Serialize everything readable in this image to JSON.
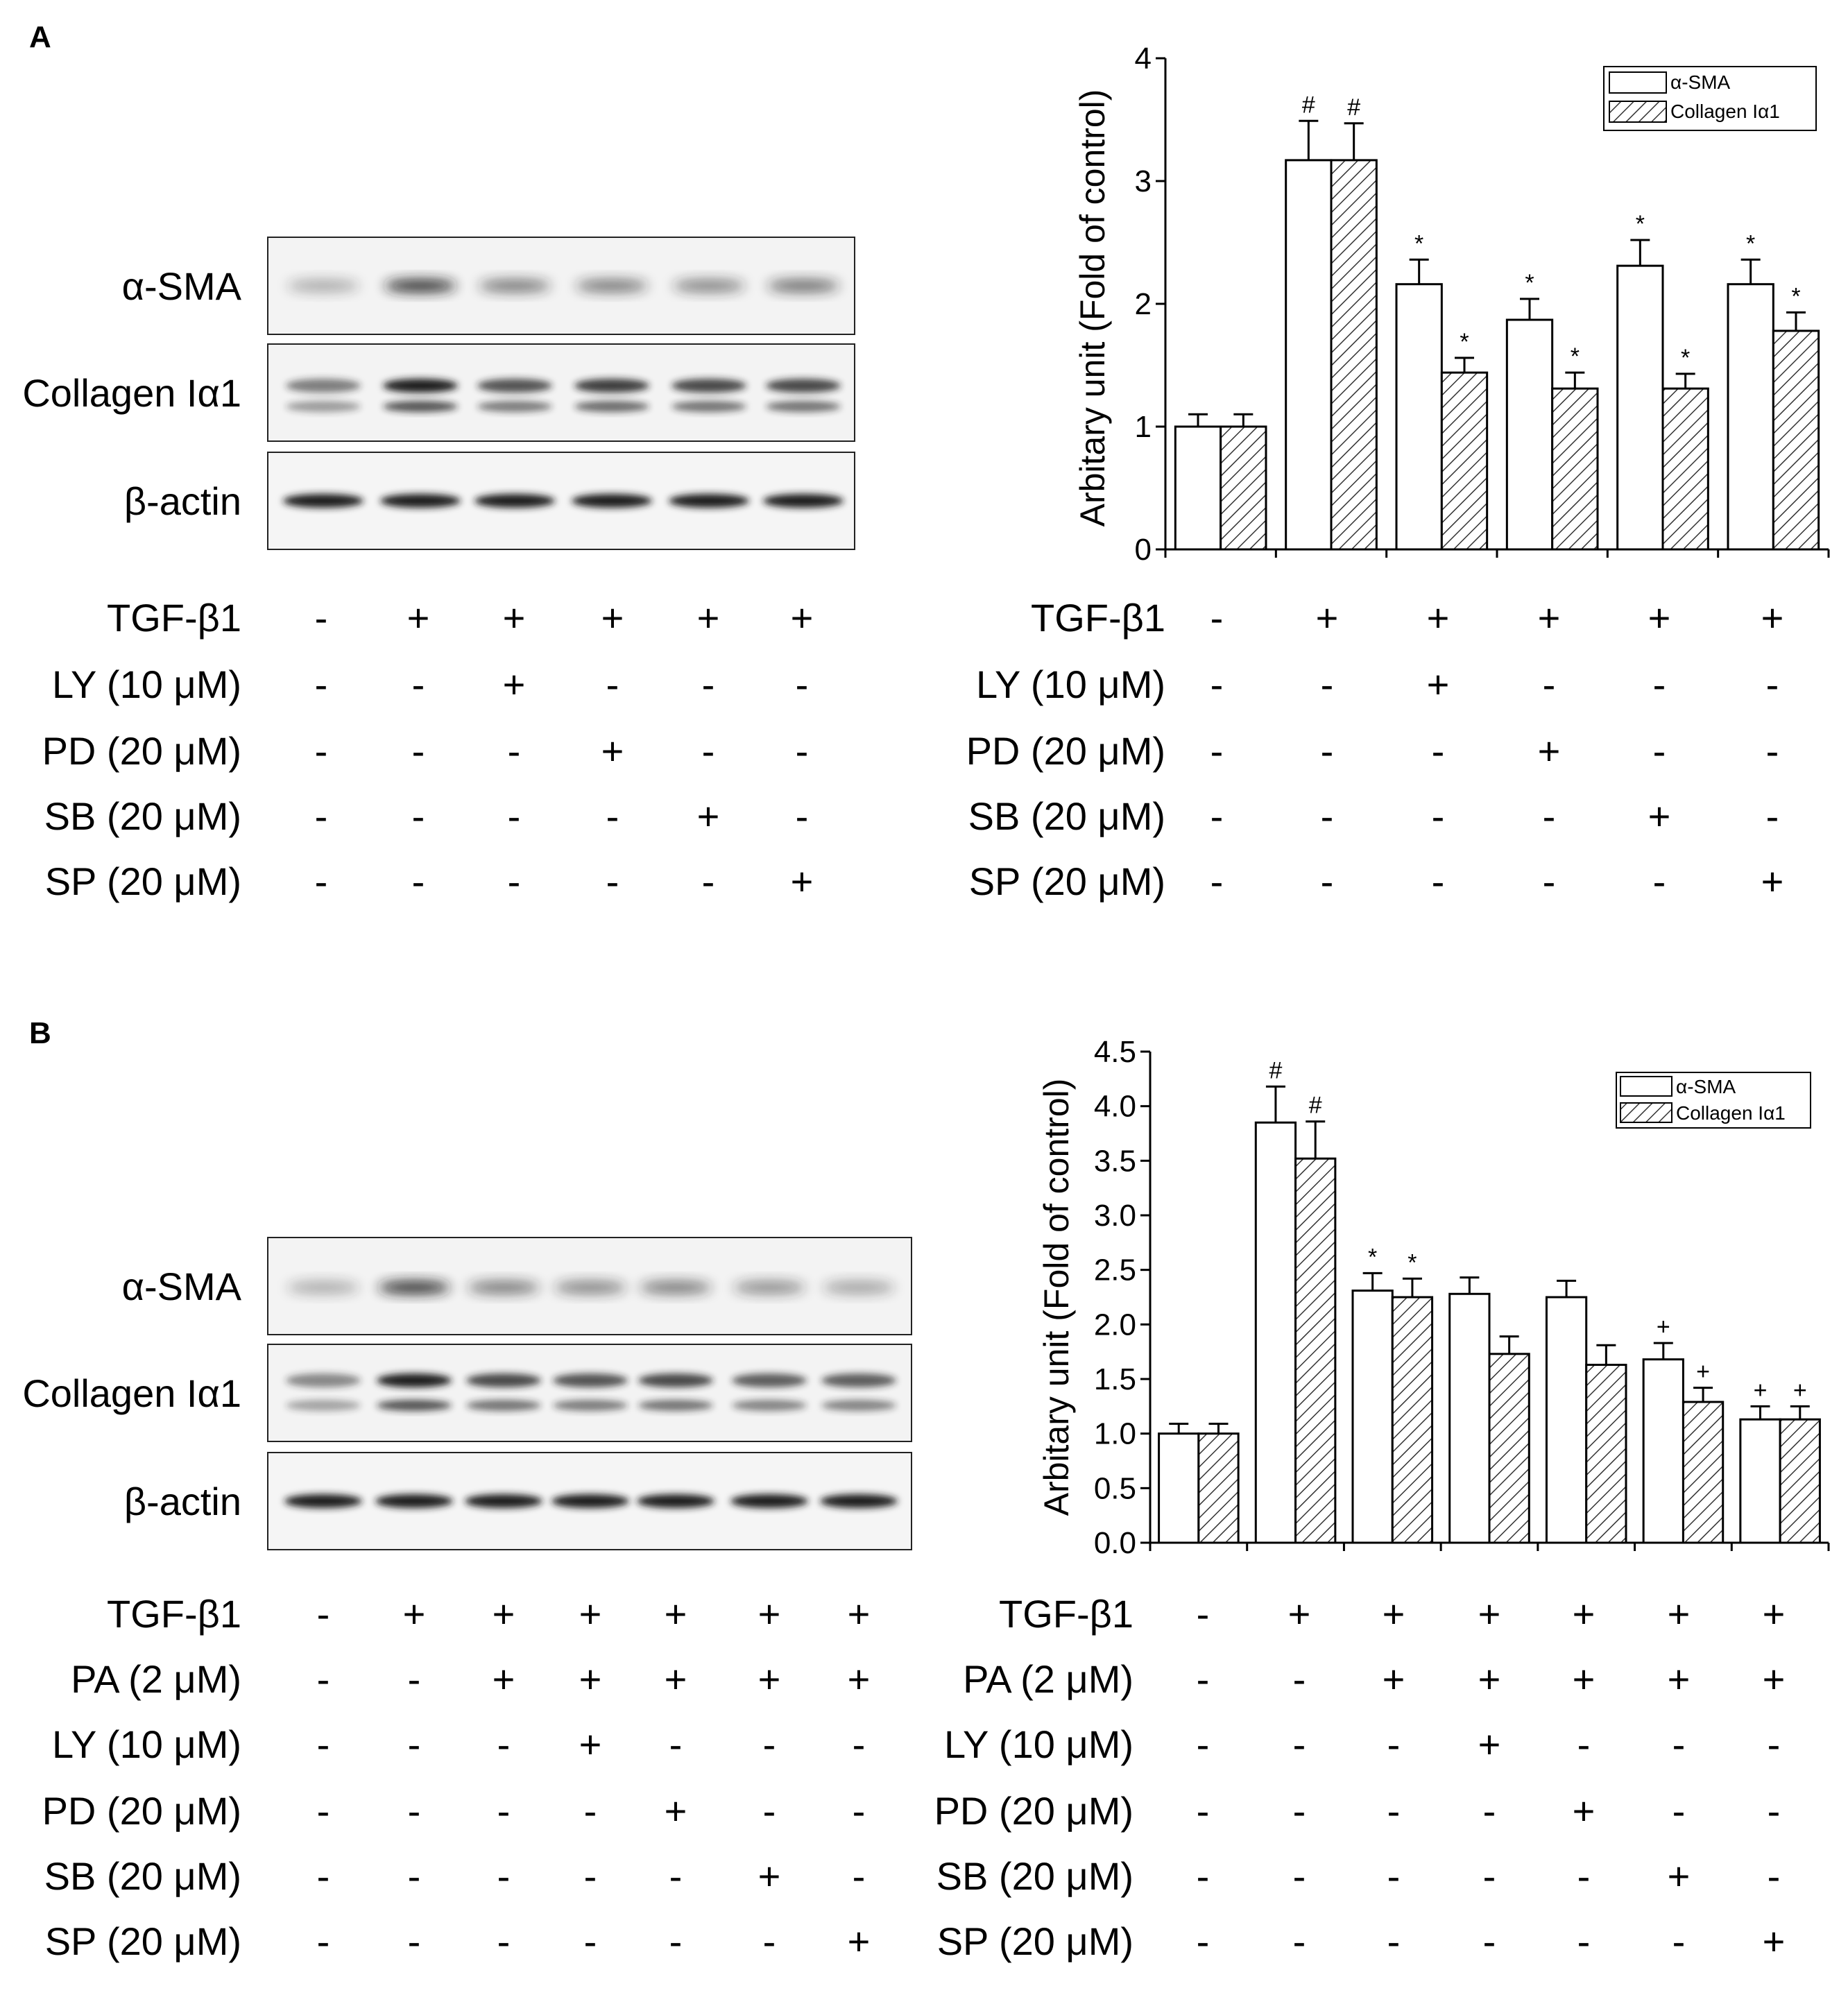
{
  "panel_a": {
    "title": "A",
    "blot_labels": [
      "α-SMA",
      "Collagen Iα1",
      "β-actin"
    ],
    "treatments": [
      {
        "label": "TGF-β1",
        "values": [
          "-",
          "+",
          "+",
          "+",
          "+",
          "+"
        ]
      },
      {
        "label": "LY (10 μM)",
        "values": [
          "-",
          "-",
          "+",
          "-",
          "-",
          "-"
        ]
      },
      {
        "label": "PD (20 μM)",
        "values": [
          "-",
          "-",
          "-",
          "+",
          "-",
          "-"
        ]
      },
      {
        "label": "SB (20 μM)",
        "values": [
          "-",
          "-",
          "-",
          "-",
          "+",
          "-"
        ]
      },
      {
        "label": "SP (20 μM)",
        "values": [
          "-",
          "-",
          "-",
          "-",
          "-",
          "+"
        ]
      }
    ]
  },
  "panel_b": {
    "title": "B",
    "blot_labels": [
      "α-SMA",
      "Collagen Iα1",
      "β-actin"
    ],
    "treatments": [
      {
        "label": "TGF-β1",
        "values": [
          "-",
          "+",
          "+",
          "+",
          "+",
          "+",
          "+"
        ]
      },
      {
        "label": "PA (2 μM)",
        "values": [
          "-",
          "-",
          "+",
          "+",
          "+",
          "+",
          "+"
        ]
      },
      {
        "label": "LY (10 μM)",
        "values": [
          "-",
          "-",
          "-",
          "+",
          "-",
          "-",
          "-"
        ]
      },
      {
        "label": "PD (20 μM)",
        "values": [
          "-",
          "-",
          "-",
          "-",
          "+",
          "-",
          "-"
        ]
      },
      {
        "label": "SB (20 μM)",
        "values": [
          "-",
          "-",
          "-",
          "-",
          "-",
          "+",
          "-"
        ]
      },
      {
        "label": "SP (20 μM)",
        "values": [
          "-",
          "-",
          "-",
          "-",
          "-",
          "-",
          "+"
        ]
      }
    ]
  },
  "colors": {
    "axis": "#000000",
    "bar_fill": "#ffffff",
    "hatch": "#333333",
    "blot_band": "#1a1a1a",
    "blot_bg": "#f2f2f2"
  },
  "chart_data": [
    {
      "type": "bar",
      "panel": "A",
      "ylabel": "Arbitary unit (Fold of control)",
      "ylim": [
        0,
        4
      ],
      "yticks": [
        0,
        1,
        2,
        3,
        4
      ],
      "legend_position": "top-right",
      "series": [
        {
          "name": "α-SMA",
          "pattern": "open",
          "values": [
            1.0,
            3.17,
            2.16,
            1.87,
            2.31,
            2.16
          ],
          "errors": [
            0.1,
            0.32,
            0.2,
            0.17,
            0.21,
            0.2
          ],
          "marks": [
            "",
            "#",
            "*",
            "*",
            "*",
            "*"
          ]
        },
        {
          "name": "Collagen Iα1",
          "pattern": "hatched",
          "values": [
            1.0,
            3.17,
            1.44,
            1.31,
            1.31,
            1.78
          ],
          "errors": [
            0.1,
            0.3,
            0.12,
            0.13,
            0.12,
            0.15
          ],
          "marks": [
            "",
            "#",
            "*",
            "*",
            "*",
            "*"
          ]
        }
      ]
    },
    {
      "type": "bar",
      "panel": "B",
      "ylabel": "Arbitary unit (Fold of control)",
      "ylim": [
        0,
        4.5
      ],
      "yticks": [
        "0.0",
        "0.5",
        "1.0",
        "1.5",
        "2.0",
        "2.5",
        "3.0",
        "3.5",
        "4.0",
        "4.5"
      ],
      "legend_position": "top-right",
      "series": [
        {
          "name": "α-SMA",
          "pattern": "open",
          "values": [
            1.0,
            3.85,
            2.31,
            2.28,
            2.25,
            1.68,
            1.13
          ],
          "errors": [
            0.09,
            0.33,
            0.16,
            0.15,
            0.15,
            0.15,
            0.12
          ],
          "marks": [
            "",
            "#",
            "*",
            "",
            "",
            "+",
            "+"
          ]
        },
        {
          "name": "Collagen Iα1",
          "pattern": "hatched",
          "values": [
            1.0,
            3.52,
            2.25,
            1.73,
            1.63,
            1.29,
            1.13
          ],
          "errors": [
            0.09,
            0.34,
            0.17,
            0.16,
            0.18,
            0.13,
            0.12
          ],
          "marks": [
            "",
            "#",
            "*",
            "",
            "",
            "+",
            "+"
          ]
        }
      ]
    }
  ]
}
